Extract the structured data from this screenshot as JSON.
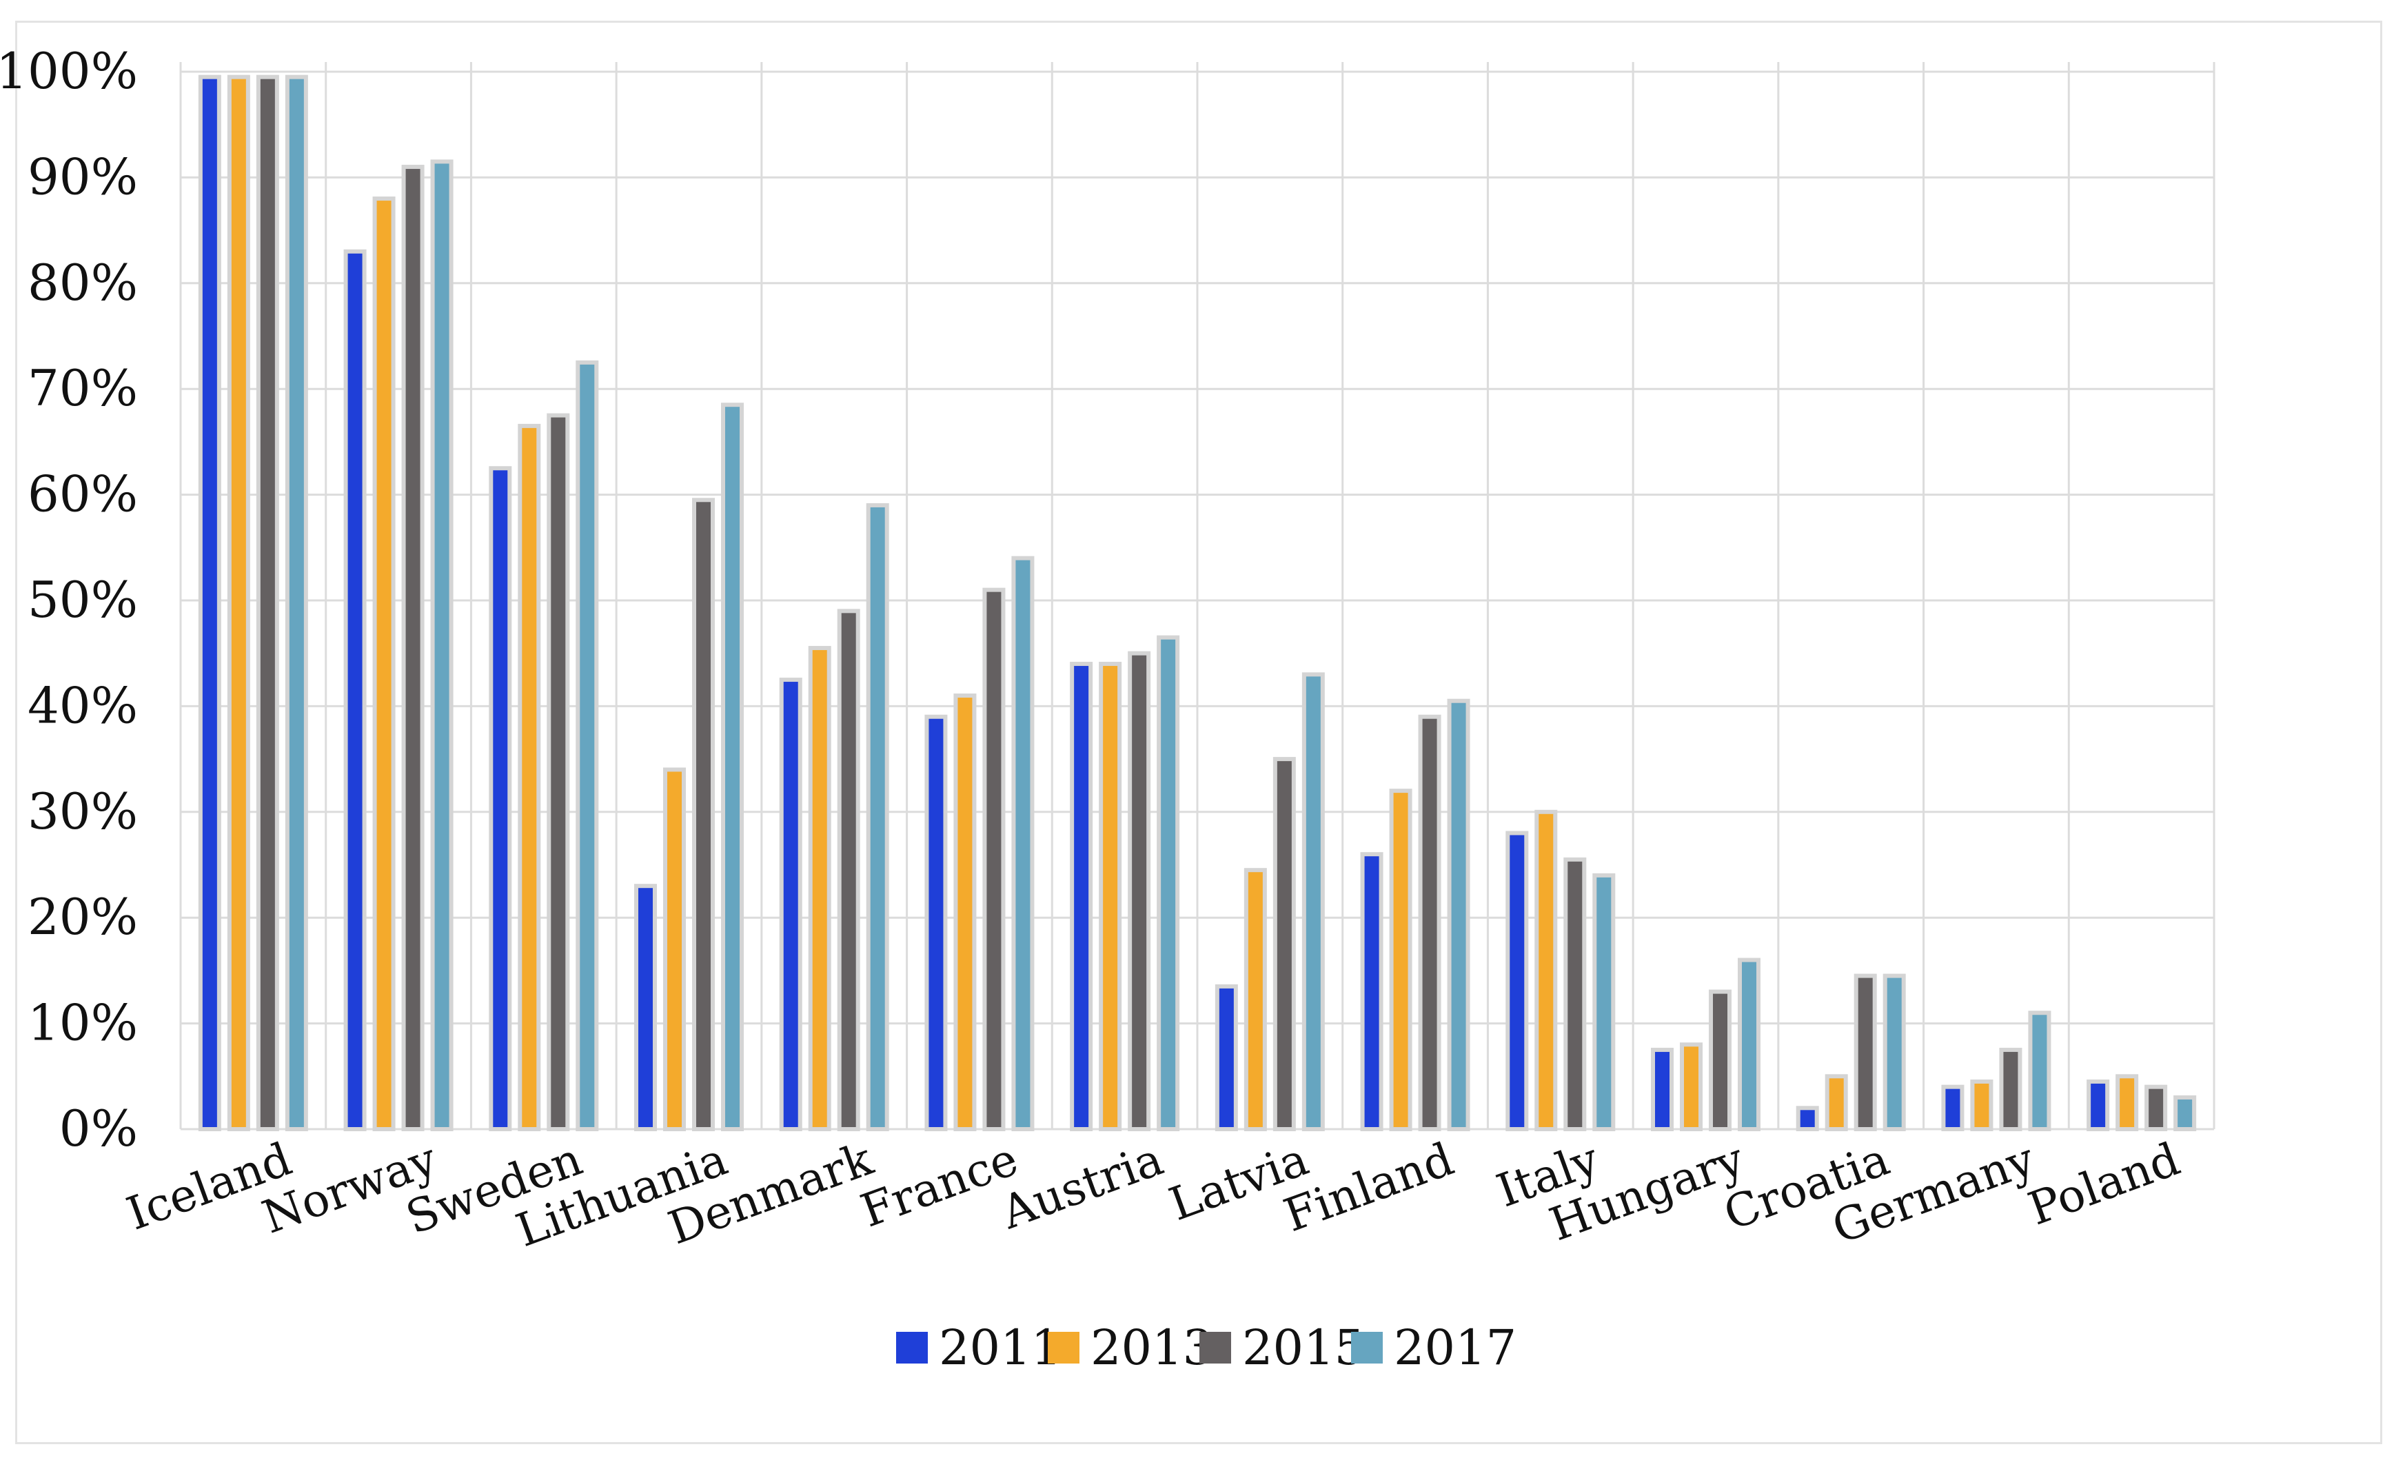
{
  "chart_data": {
    "type": "bar",
    "categories": [
      "Iceland",
      "Norway",
      "Sweden",
      "Lithuania",
      "Denmark",
      "France",
      "Austria",
      "Latvia",
      "Finland",
      "Italy",
      "Hungary",
      "Croatia",
      "Germany",
      "Poland"
    ],
    "series": [
      {
        "name": "2011",
        "color": "#1f3fd8",
        "values": [
          99.5,
          83,
          62.5,
          23,
          42.5,
          39,
          44,
          13.5,
          26,
          28,
          7.5,
          2,
          4,
          4.5
        ]
      },
      {
        "name": "2013",
        "color": "#f4aa2c",
        "values": [
          99.5,
          88,
          66.5,
          34,
          45.5,
          41,
          44,
          24.5,
          32,
          30,
          8,
          5,
          4.5,
          5
        ]
      },
      {
        "name": "2015",
        "color": "#646061",
        "values": [
          99.5,
          91,
          67.5,
          59.5,
          49,
          51,
          45,
          35,
          39,
          25.5,
          13,
          14.5,
          7.5,
          4
        ]
      },
      {
        "name": "2017",
        "color": "#66a5c0",
        "values": [
          99.5,
          91.5,
          72.5,
          68.5,
          59,
          54,
          46.5,
          43,
          40.5,
          24,
          16,
          14.5,
          11,
          3
        ]
      }
    ],
    "yticks": [
      "0%",
      "10%",
      "20%",
      "30%",
      "40%",
      "50%",
      "60%",
      "70%",
      "80%",
      "90%",
      "100%"
    ],
    "ylim": [
      0,
      100
    ],
    "grid": true,
    "legend_position": "bottom-center"
  }
}
